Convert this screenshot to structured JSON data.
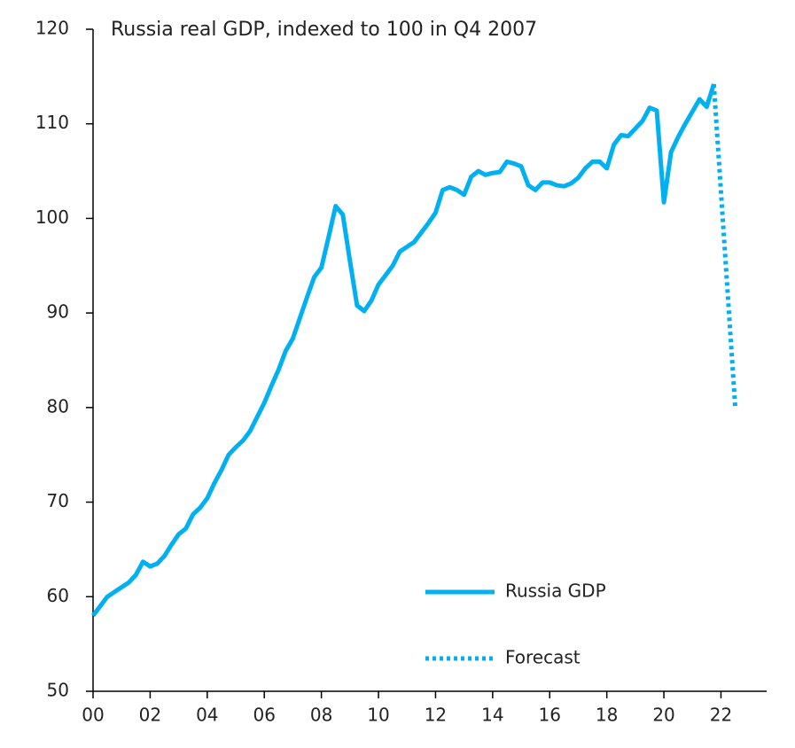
{
  "chart_data": {
    "type": "line",
    "title": "Russia real GDP, indexed to 100 in Q4 2007",
    "xlim": [
      2000,
      2023.6
    ],
    "ylim": [
      50,
      120
    ],
    "yticks": [
      50,
      60,
      70,
      80,
      90,
      100,
      110,
      120
    ],
    "xticks": [
      {
        "value": 2000,
        "label": "00"
      },
      {
        "value": 2002,
        "label": "02"
      },
      {
        "value": 2004,
        "label": "04"
      },
      {
        "value": 2006,
        "label": "06"
      },
      {
        "value": 2008,
        "label": "08"
      },
      {
        "value": 2010,
        "label": "10"
      },
      {
        "value": 2012,
        "label": "12"
      },
      {
        "value": 2014,
        "label": "14"
      },
      {
        "value": 2016,
        "label": "16"
      },
      {
        "value": 2018,
        "label": "18"
      },
      {
        "value": 2020,
        "label": "20"
      },
      {
        "value": 2022,
        "label": "22"
      }
    ],
    "grid": false,
    "legend": "lower right",
    "series": [
      {
        "name": "Russia GDP",
        "color": "#00b0f0",
        "line_style": "solid",
        "x": [
          2000,
          2000.25,
          2000.5,
          2000.75,
          2001,
          2001.25,
          2001.5,
          2001.75,
          2002,
          2002.25,
          2002.5,
          2002.75,
          2003,
          2003.25,
          2003.5,
          2003.75,
          2004,
          2004.25,
          2004.5,
          2004.75,
          2005,
          2005.25,
          2005.5,
          2005.75,
          2006,
          2006.25,
          2006.5,
          2006.75,
          2007,
          2007.25,
          2007.5,
          2007.75,
          2008,
          2008.25,
          2008.5,
          2008.75,
          2009,
          2009.25,
          2009.5,
          2009.75,
          2010,
          2010.25,
          2010.5,
          2010.75,
          2011,
          2011.25,
          2011.5,
          2011.75,
          2012,
          2012.25,
          2012.5,
          2012.75,
          2013,
          2013.25,
          2013.5,
          2013.75,
          2014,
          2014.25,
          2014.5,
          2014.75,
          2015,
          2015.25,
          2015.5,
          2015.75,
          2016,
          2016.25,
          2016.5,
          2016.75,
          2017,
          2017.25,
          2017.5,
          2017.75,
          2018,
          2018.25,
          2018.5,
          2018.75,
          2019,
          2019.25,
          2019.5,
          2019.75,
          2020,
          2020.25,
          2020.5,
          2020.75,
          2021,
          2021.25,
          2021.5,
          2021.75
        ],
        "values": [
          58,
          59,
          60,
          60.5,
          61,
          61.5,
          62.3,
          63.7,
          63.2,
          63.5,
          64.3,
          65.5,
          66.6,
          67.2,
          68.7,
          69.4,
          70.4,
          72,
          73.4,
          75,
          75.8,
          76.5,
          77.5,
          79,
          80.5,
          82.3,
          84,
          86,
          87.3,
          89.5,
          91.7,
          93.8,
          94.8,
          98,
          101.3,
          100.4,
          95.5,
          90.8,
          90.2,
          91.3,
          93,
          94,
          95,
          96.5,
          97,
          97.5,
          98.5,
          99.5,
          100.6,
          103,
          103.3,
          103,
          102.5,
          104.4,
          105,
          104.6,
          104.8,
          104.9,
          106,
          105.8,
          105.5,
          103.5,
          103,
          103.8,
          103.8,
          103.5,
          103.4,
          103.7,
          104.3,
          105.3,
          106,
          106,
          105.3,
          107.8,
          108.8,
          108.7,
          109.5,
          110.3,
          111.7,
          111.4,
          101.7,
          107,
          108.6,
          110,
          111.3,
          112.6,
          111.8,
          114.2
        ]
      },
      {
        "name": "Forecast",
        "color": "#00b0f0",
        "line_style": "dotted",
        "x": [
          2021.75,
          2022.5
        ],
        "values": [
          114.2,
          80
        ]
      }
    ]
  }
}
